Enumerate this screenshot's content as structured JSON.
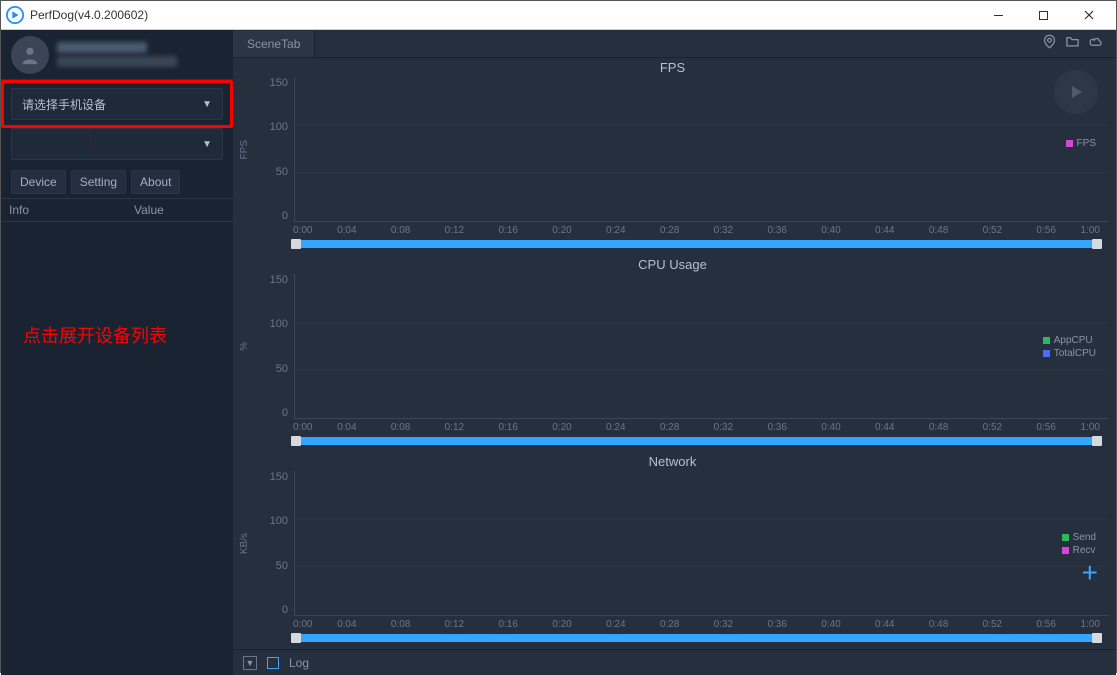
{
  "window": {
    "title": "PerfDog(v4.0.200602)"
  },
  "sidebar": {
    "device_dropdown_label": "请选择手机设备",
    "dropdown2_label": "",
    "tabs": {
      "device": "Device",
      "setting": "Setting",
      "about": "About"
    },
    "info_cols": {
      "info": "Info",
      "value": "Value"
    },
    "annotation": "点击展开设备列表"
  },
  "scenebar": {
    "tab_label": "SceneTab"
  },
  "logbar": {
    "log_label": "Log"
  },
  "charts": {
    "xaxis_ticks": [
      "0:00",
      "0:04",
      "0:08",
      "0:12",
      "0:16",
      "0:20",
      "0:24",
      "0:28",
      "0:32",
      "0:36",
      "0:40",
      "0:44",
      "0:48",
      "0:52",
      "0:56",
      "1:00"
    ],
    "yaxis_ticks": [
      "150",
      "100",
      "50",
      "0"
    ],
    "fps": {
      "title": "FPS",
      "ylabel": "FPS",
      "legend": [
        {
          "label": "FPS",
          "color": "#d846d8"
        }
      ],
      "ylim": [
        0,
        150
      ],
      "type": "line",
      "bg": "#252f3e"
    },
    "cpu": {
      "title": "CPU Usage",
      "ylabel": "%",
      "legend": [
        {
          "label": "AppCPU",
          "color": "#2cb85c"
        },
        {
          "label": "TotalCPU",
          "color": "#4a6cff"
        }
      ],
      "ylim": [
        0,
        150
      ],
      "type": "line",
      "bg": "#252f3e"
    },
    "net": {
      "title": "Network",
      "ylabel": "KB/s",
      "legend": [
        {
          "label": "Send",
          "color": "#2cb85c"
        },
        {
          "label": "Recv",
          "color": "#d846d8"
        }
      ],
      "ylim": [
        0,
        150
      ],
      "type": "line",
      "bg": "#252f3e"
    }
  },
  "colors": {
    "accent": "#35a6ff",
    "highlight": "#ff0000",
    "bg_dark": "#1a2332",
    "bg_panel": "#252f3e"
  }
}
